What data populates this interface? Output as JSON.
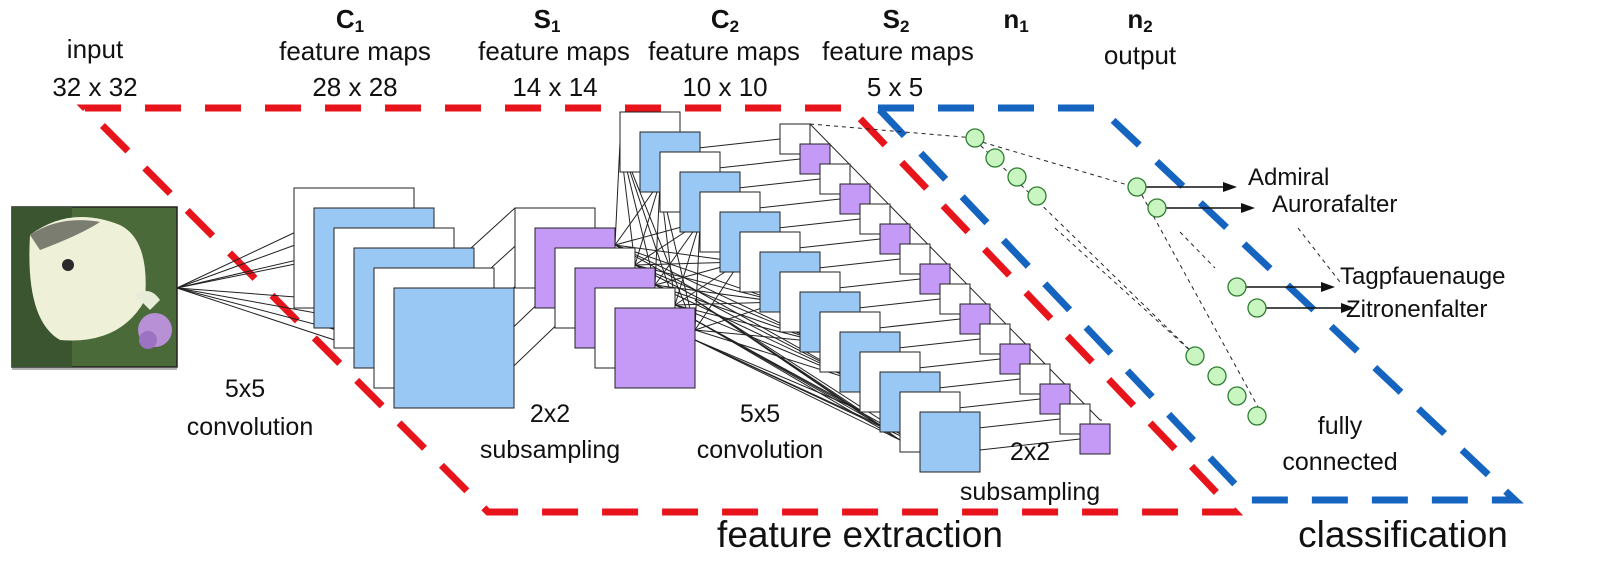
{
  "header": {
    "input": {
      "title": "input",
      "size": "32 x 32"
    },
    "c1": {
      "name": "C",
      "sub": "1",
      "title": "feature maps",
      "size": "28 x 28"
    },
    "s1": {
      "name": "S",
      "sub": "1",
      "title": "feature maps",
      "size": "14 x 14"
    },
    "c2": {
      "name": "C",
      "sub": "2",
      "title": "feature maps",
      "size": "10 x 10"
    },
    "s2": {
      "name": "S",
      "sub": "2",
      "title": "feature maps",
      "size": "5 x 5"
    },
    "n1": {
      "name": "n",
      "sub": "1"
    },
    "n2": {
      "name": "n",
      "sub": "2",
      "title": "output"
    }
  },
  "operations": {
    "conv1": [
      "5x5",
      "convolution"
    ],
    "sub1": [
      "2x2",
      "subsampling"
    ],
    "conv2": [
      "5x5",
      "convolution"
    ],
    "sub2": [
      "2x2",
      "subsampling"
    ],
    "fc": [
      "fully",
      "connected"
    ]
  },
  "sections": {
    "feature_extraction": "feature extraction",
    "classification": "classification"
  },
  "outputs": [
    "Admiral",
    "Aurorafalter",
    "Tagpfauenauge",
    "Zitronenfalter"
  ],
  "colors": {
    "feature_extraction_border": "#e8141c",
    "classification_border": "#1565c0",
    "convolution_map": "#99c8f5",
    "subsampling_map": "#c59af7",
    "neuron": "#c8f5c0",
    "neuron_stroke": "#2e7d32",
    "butterfly_background": "#4a6a3a",
    "butterfly_wing": "#eef0d8",
    "flower": "#b890d6"
  },
  "icons": {
    "input_image": "butterfly-photo-icon"
  }
}
